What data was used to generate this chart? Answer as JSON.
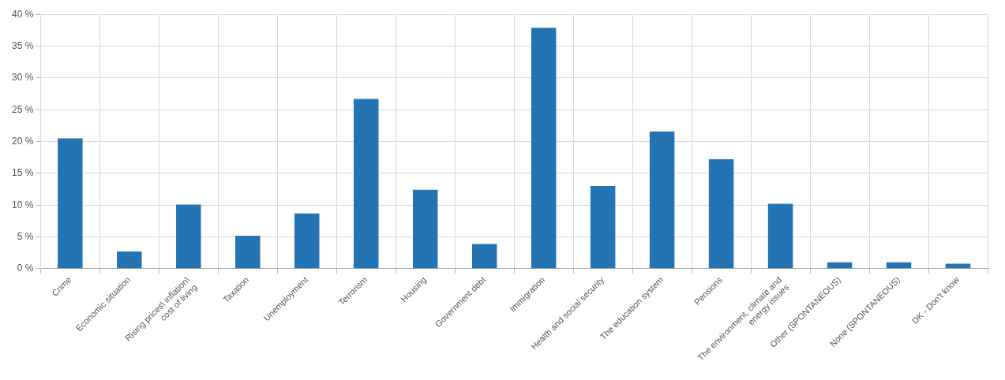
{
  "chart_data": {
    "type": "bar",
    "categories": [
      "Crime",
      "Economic situation",
      "Rising prices\\ inflation\\ cost of living",
      "Taxation",
      "Unemployment",
      "Terrorism",
      "Housing",
      "Government debt",
      "Immigration",
      "Health and social security",
      "The education system",
      "Pensions",
      "The environment, climate and energy issues",
      "Other (SPONTANEOUS)",
      "None (SPONTANEOUS)",
      "DK - Don't know"
    ],
    "values": [
      20.5,
      2.7,
      10.1,
      5.2,
      8.7,
      26.7,
      12.4,
      3.9,
      37.9,
      13.0,
      21.6,
      17.2,
      10.2,
      1.0,
      1.0,
      0.8
    ],
    "color": "#2473b3",
    "ylim": [
      0,
      40
    ],
    "yticks": [
      {
        "value": 0,
        "label": "0 %"
      },
      {
        "value": 5,
        "label": "5 %"
      },
      {
        "value": 10,
        "label": "10 %"
      },
      {
        "value": 15,
        "label": "15 %"
      },
      {
        "value": 20,
        "label": "20 %"
      },
      {
        "value": 25,
        "label": "25 %"
      },
      {
        "value": 30,
        "label": "30 %"
      },
      {
        "value": 35,
        "label": "35 %"
      },
      {
        "value": 40,
        "label": "40 %"
      }
    ],
    "grid": true
  }
}
